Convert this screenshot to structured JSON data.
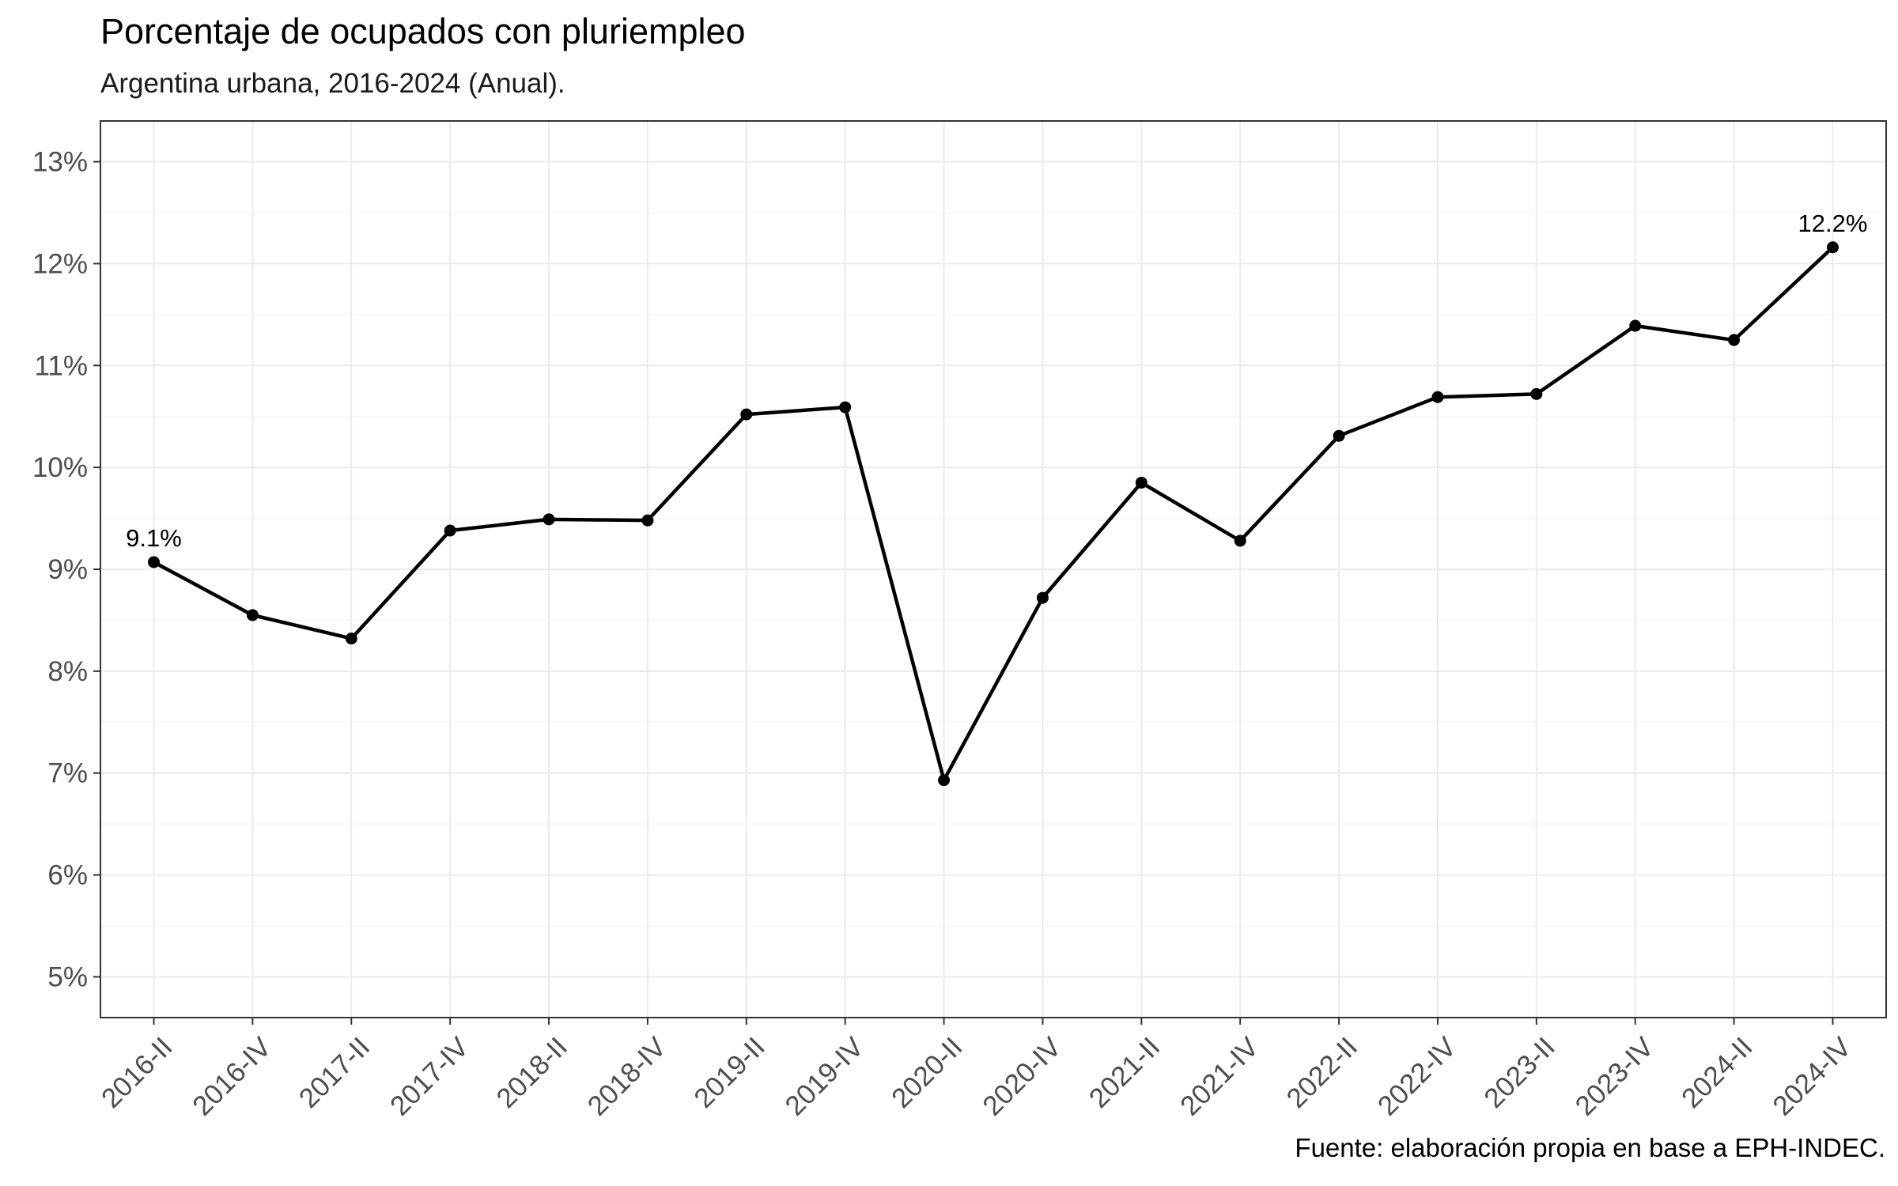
{
  "chart_data": {
    "type": "line",
    "title": "Porcentaje de ocupados con pluriempleo",
    "subtitle": "Argentina urbana, 2016-2024 (Anual).",
    "caption": "Fuente: elaboración propia en base a EPH-INDEC.",
    "xlabel": "",
    "ylabel": "",
    "categories": [
      "2016-II",
      "2016-IV",
      "2017-II",
      "2017-IV",
      "2018-II",
      "2018-IV",
      "2019-II",
      "2019-IV",
      "2020-II",
      "2020-IV",
      "2021-II",
      "2021-IV",
      "2022-II",
      "2022-IV",
      "2023-II",
      "2023-IV",
      "2024-II",
      "2024-IV"
    ],
    "values": [
      9.07,
      8.55,
      8.32,
      9.38,
      9.49,
      9.48,
      10.52,
      10.59,
      6.93,
      8.72,
      9.85,
      9.28,
      10.31,
      10.69,
      10.72,
      11.39,
      11.25,
      12.16
    ],
    "data_labels": [
      {
        "category": "2016-II",
        "value": 9.07,
        "text": "9.1%"
      },
      {
        "category": "2024-IV",
        "value": 12.16,
        "text": "12.2%"
      }
    ],
    "yticks": [
      5,
      6,
      7,
      8,
      9,
      10,
      11,
      12,
      13
    ],
    "ytick_labels": [
      "5%",
      "6%",
      "7%",
      "8%",
      "9%",
      "10%",
      "11%",
      "12%",
      "13%"
    ],
    "ylim": [
      4.6,
      13.4
    ],
    "grid": true,
    "legend": "none",
    "colors": {
      "line": "#000000",
      "grid_major": "#ebebeb",
      "grid_minor": "#f5f5f5",
      "panel_border": "#333333",
      "tick_text": "#4d4d4d"
    }
  }
}
